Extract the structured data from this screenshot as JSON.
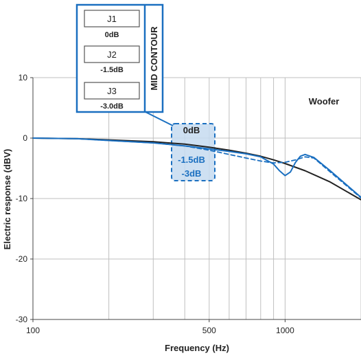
{
  "chart_data": {
    "type": "line",
    "title": "",
    "xlabel": "Frequency (Hz)",
    "ylabel": "Electric response (dBV)",
    "x_scale": "log",
    "xlim": [
      100,
      2000
    ],
    "ylim": [
      -30,
      10
    ],
    "x_tick_labels": [
      "100",
      "500",
      "1000"
    ],
    "y_tick_labels": [
      "10",
      "0",
      "-10",
      "-20",
      "-30"
    ],
    "grid": true,
    "annotation": "Woofer",
    "series": [
      {
        "name": "0dB",
        "style": "solid",
        "color": "#222222",
        "x": [
          100,
          150,
          200,
          300,
          400,
          500,
          600,
          700,
          800,
          900,
          1000,
          1200,
          1500,
          2000
        ],
        "y": [
          0,
          -0.1,
          -0.3,
          -0.6,
          -1.0,
          -1.5,
          -2.0,
          -2.5,
          -3.0,
          -3.6,
          -4.2,
          -5.4,
          -7.2,
          -10.2
        ]
      },
      {
        "name": "-1.5dB",
        "style": "dashed",
        "color": "#1a6fc0",
        "x": [
          100,
          150,
          200,
          300,
          400,
          500,
          600,
          700,
          800,
          900,
          1000,
          1100,
          1200,
          1300,
          1500,
          2000
        ],
        "y": [
          0,
          -0.1,
          -0.4,
          -0.8,
          -1.3,
          -2.0,
          -2.7,
          -3.3,
          -3.8,
          -4.1,
          -4.0,
          -3.6,
          -3.1,
          -3.3,
          -5.5,
          -9.9
        ]
      },
      {
        "name": "-3.0dB",
        "style": "solid",
        "color": "#1a6fc0",
        "x": [
          100,
          150,
          200,
          300,
          400,
          500,
          600,
          700,
          800,
          900,
          950,
          1000,
          1050,
          1100,
          1150,
          1200,
          1300,
          1500,
          2000
        ],
        "y": [
          0,
          -0.1,
          -0.4,
          -0.8,
          -1.3,
          -1.8,
          -2.2,
          -2.6,
          -3.1,
          -4.3,
          -5.4,
          -6.2,
          -5.6,
          -4.0,
          -3.0,
          -2.7,
          -3.2,
          -5.3,
          -9.8
        ]
      }
    ]
  },
  "mid_contour": {
    "title": "MID CONTOUR",
    "jumpers": [
      {
        "name": "J1",
        "value": "0dB"
      },
      {
        "name": "J2",
        "value": "-1.5dB"
      },
      {
        "name": "J3",
        "value": "-3.0dB"
      }
    ]
  },
  "callout": {
    "labels": [
      "0dB",
      "-1.5dB",
      "-3dB"
    ]
  },
  "colors": {
    "accent": "#1a6fc0",
    "highlight_fill": "#c5daf0",
    "curve_black": "#222222",
    "grid": "#bfbfbf"
  }
}
